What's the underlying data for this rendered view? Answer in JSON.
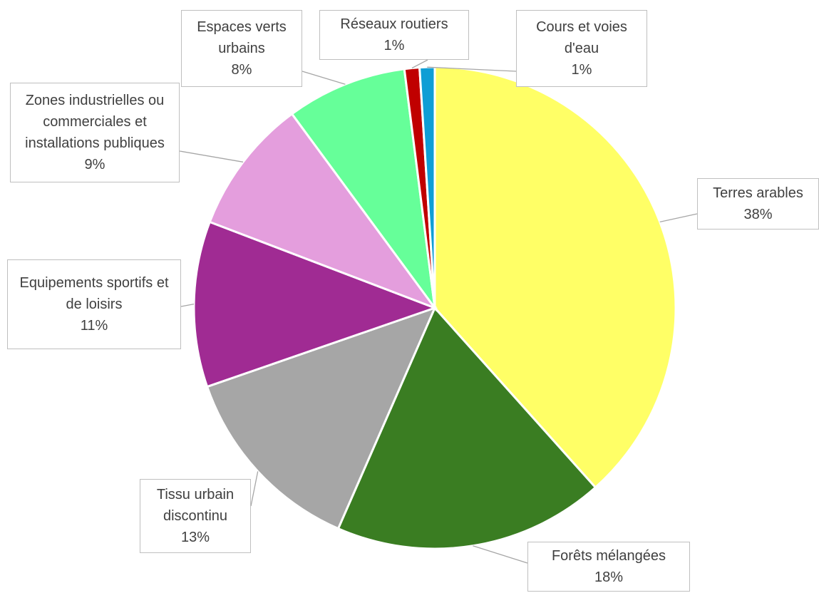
{
  "chart_data": {
    "type": "pie",
    "categories": [
      "Terres arables",
      "Forêts mélangées",
      "Tissu urbain discontinu",
      "Equipements sportifs et de loisirs",
      "Zones industrielles ou commerciales et installations publiques",
      "Espaces verts urbains",
      "Réseaux routiers",
      "Cours et voies d'eau"
    ],
    "values": [
      38,
      18,
      13,
      11,
      9,
      8,
      1,
      1
    ],
    "value_labels": [
      "38%",
      "18%",
      "13%",
      "11%",
      "9%",
      "8%",
      "1%",
      "1%"
    ],
    "colors": [
      "#FFFF66",
      "#3A7D22",
      "#A6A6A6",
      "#A02B93",
      "#E49EDD",
      "#66FF99",
      "#C00000",
      "#0F9ED5"
    ]
  }
}
